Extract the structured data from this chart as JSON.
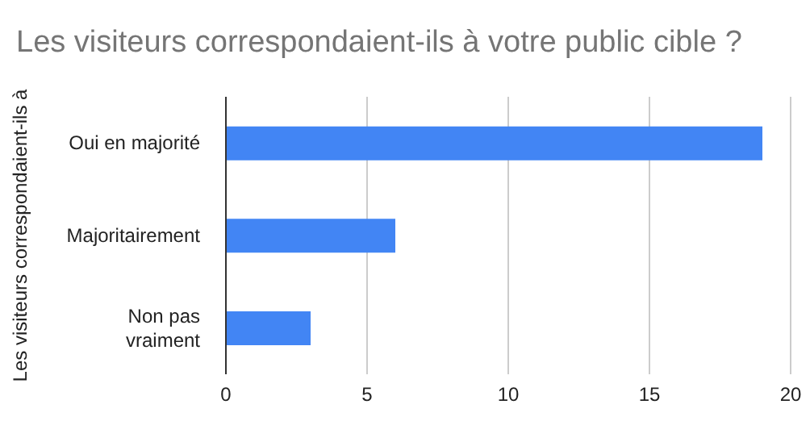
{
  "chart_data": {
    "type": "bar",
    "orientation": "horizontal",
    "title": "Les visiteurs correspondaient-ils à votre public cible ?",
    "ylabel": "Les visiteurs correspondaient-ils à",
    "categories": [
      "Oui en majorité",
      "Majoritairement",
      "Non pas vraiment"
    ],
    "values": [
      19,
      6,
      3
    ],
    "color": "#4285f4",
    "xlim": [
      0,
      20
    ],
    "xticks": [
      0,
      5,
      10,
      15,
      20
    ],
    "grid": "x"
  }
}
